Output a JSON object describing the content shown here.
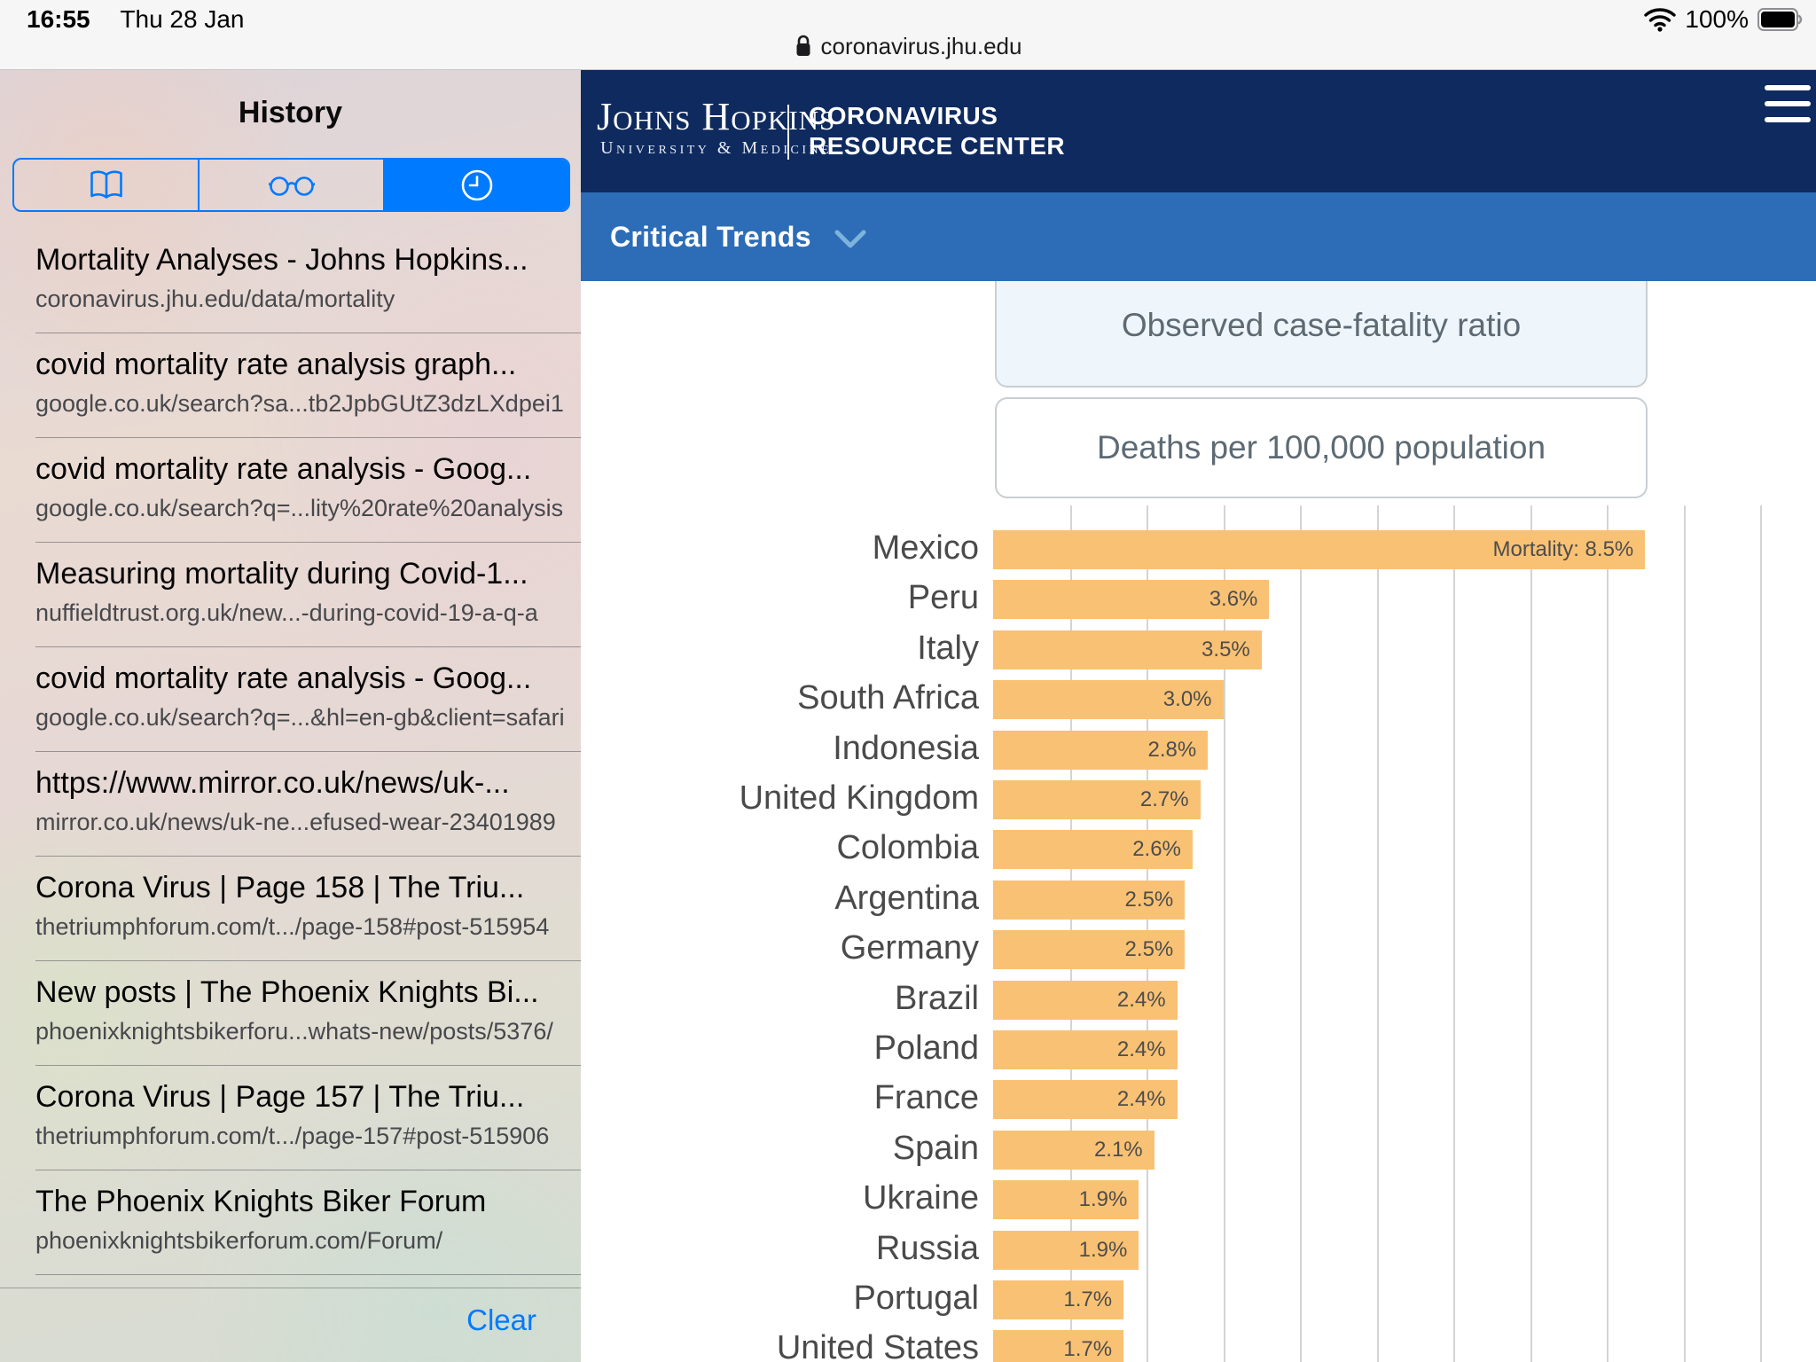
{
  "status_bar": {
    "time": "16:55",
    "date": "Thu 28 Jan",
    "battery": "100%"
  },
  "url_bar": {
    "domain": "coronavirus.jhu.edu"
  },
  "sidebar": {
    "title": "History",
    "tabs": [
      {
        "name": "bookmarks",
        "selected": false
      },
      {
        "name": "reading-list",
        "selected": false
      },
      {
        "name": "history",
        "selected": true
      }
    ],
    "items": [
      {
        "title": "Mortality Analyses - Johns Hopkins...",
        "url": "coronavirus.jhu.edu/data/mortality"
      },
      {
        "title": "covid mortality rate analysis graph...",
        "url": "google.co.uk/search?sa...tb2JpbGUtZ3dzLXdpei1"
      },
      {
        "title": "covid mortality rate analysis - Goog...",
        "url": "google.co.uk/search?q=...lity%20rate%20analysis"
      },
      {
        "title": "Measuring mortality during Covid-1...",
        "url": "nuffieldtrust.org.uk/new...-during-covid-19-a-q-a"
      },
      {
        "title": "covid mortality rate analysis - Goog...",
        "url": "google.co.uk/search?q=...&hl=en-gb&client=safari"
      },
      {
        "title": "https://www.mirror.co.uk/news/uk-...",
        "url": "mirror.co.uk/news/uk-ne...efused-wear-23401989"
      },
      {
        "title": "Corona Virus | Page 158 | The Triu...",
        "url": "thetriumphforum.com/t.../page-158#post-515954"
      },
      {
        "title": "New posts | The Phoenix Knights Bi...",
        "url": "phoenixknightsbikerforu...whats-new/posts/5376/"
      },
      {
        "title": "Corona Virus | Page 157 | The Triu...",
        "url": "thetriumphforum.com/t.../page-157#post-515906"
      },
      {
        "title": "The Phoenix Knights Biker Forum",
        "url": "phoenixknightsbikerforum.com/Forum/"
      }
    ],
    "clear_label": "Clear"
  },
  "site": {
    "logo_line1": "Johns Hopkins",
    "logo_line2": "University & Medicine",
    "brand_line1": "CORONAVIRUS",
    "brand_line2": "RESOURCE CENTER",
    "nav_label": "Critical Trends",
    "metric_buttons": [
      {
        "label": "Observed case-fatality ratio",
        "selected": true
      },
      {
        "label": "Deaths per 100,000 population",
        "selected": false
      }
    ]
  },
  "chart_data": {
    "type": "bar",
    "orientation": "horizontal",
    "selected_metric": "Observed case-fatality ratio",
    "categories": [
      "Mexico",
      "Peru",
      "Italy",
      "South Africa",
      "Indonesia",
      "United Kingdom",
      "Colombia",
      "Argentina",
      "Germany",
      "Brazil",
      "Poland",
      "France",
      "Spain",
      "Ukraine",
      "Russia",
      "Portugal",
      "United States"
    ],
    "values": [
      8.5,
      3.6,
      3.5,
      3.0,
      2.8,
      2.7,
      2.6,
      2.5,
      2.5,
      2.4,
      2.4,
      2.4,
      2.1,
      1.9,
      1.9,
      1.7,
      1.7
    ],
    "bar_labels": [
      "Mortality: 8.5%",
      "3.6%",
      "3.5%",
      "3.0%",
      "2.8%",
      "2.7%",
      "2.6%",
      "2.5%",
      "2.5%",
      "2.4%",
      "2.4%",
      "2.4%",
      "2.1%",
      "1.9%",
      "1.9%",
      "1.7%",
      "1.7%"
    ],
    "unit": "%",
    "xlim": [
      0,
      10
    ],
    "gridline_interval_pct": 1,
    "grid": true,
    "legend": "none",
    "bar_color": "#f9c173"
  },
  "colors": {
    "ios_blue": "#007aff",
    "jhu_navy": "#0e2a5f",
    "trends_blue": "#2d6db7",
    "bar_orange": "#f9c173",
    "gridline": "#d4d4d4",
    "metric_active_bg": "#eff6fb"
  }
}
